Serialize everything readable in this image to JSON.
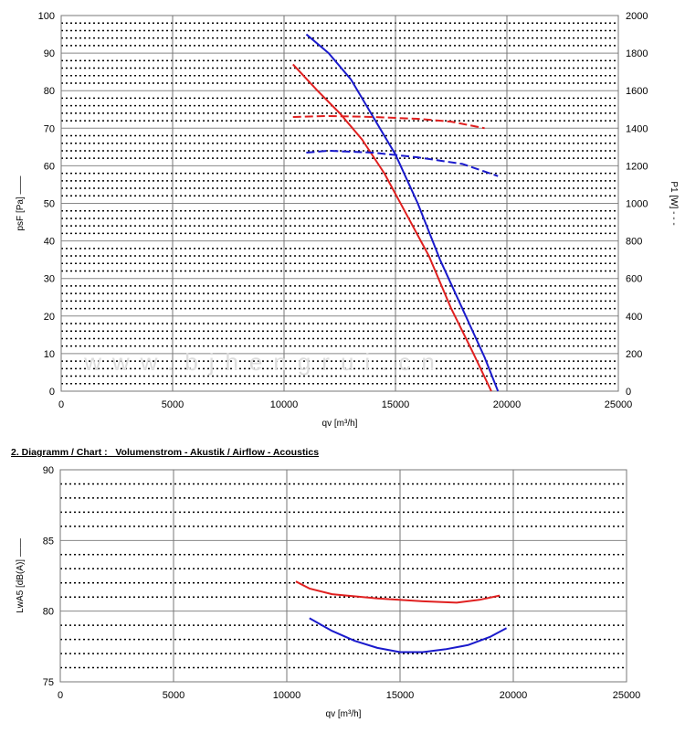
{
  "watermark": "www.bjhengrui.cn",
  "chart_data": [
    {
      "type": "line",
      "xlabel": "qv [m³/h]",
      "ylabel": "psF [Pa] ——",
      "y2label": "P1 [W] - - -",
      "xlim": [
        0,
        25000
      ],
      "ylim": [
        0,
        100
      ],
      "y2lim": [
        0,
        2000
      ],
      "xticks": [
        "0",
        "5000",
        "10000",
        "15000",
        "20000",
        "25000"
      ],
      "yticks": [
        "0",
        "10",
        "20",
        "30",
        "40",
        "50",
        "60",
        "70",
        "80",
        "90",
        "100"
      ],
      "y2ticks": [
        "0",
        "200",
        "400",
        "600",
        "800",
        "1000",
        "1200",
        "1400",
        "1600",
        "1800",
        "2000"
      ],
      "grid": true,
      "series": [
        {
          "axis": "left",
          "style": "solid",
          "color": "#1a1acc",
          "x": [
            11000,
            12000,
            13000,
            14000,
            15000,
            16000,
            17000,
            18000,
            19000,
            19600
          ],
          "y": [
            95,
            90,
            83,
            73,
            63,
            50,
            35,
            22,
            9,
            0
          ]
        },
        {
          "axis": "left",
          "style": "solid",
          "color": "#e02020",
          "x": [
            10400,
            11500,
            12500,
            13500,
            14500,
            15500,
            16500,
            17500,
            18500,
            19300
          ],
          "y": [
            87,
            80,
            74,
            67,
            58,
            47,
            36,
            22,
            10,
            0
          ]
        },
        {
          "axis": "right",
          "style": "dashed",
          "color": "#e02020",
          "x": [
            10400,
            12000,
            14000,
            16000,
            17500,
            19000
          ],
          "y": [
            1460,
            1465,
            1460,
            1450,
            1435,
            1400
          ]
        },
        {
          "axis": "right",
          "style": "dashed",
          "color": "#1a1acc",
          "x": [
            11000,
            12000,
            14000,
            16000,
            18000,
            19600
          ],
          "y": [
            1270,
            1280,
            1270,
            1245,
            1210,
            1145
          ]
        }
      ]
    },
    {
      "type": "line",
      "title": "2. Diagramm / Chart :   Volumenstrom - Akustik / Airflow - Acoustics",
      "xlabel": "qv [m³/h]",
      "ylabel": "LwA5 [dB(A)] ——",
      "xlim": [
        0,
        25000
      ],
      "ylim": [
        75,
        90
      ],
      "xticks": [
        "0",
        "5000",
        "10000",
        "15000",
        "20000",
        "25000"
      ],
      "yticks": [
        "75",
        "80",
        "85",
        "90"
      ],
      "grid": true,
      "series": [
        {
          "style": "solid",
          "color": "#e02020",
          "x": [
            10400,
            11000,
            12000,
            14000,
            16000,
            17500,
            18500,
            19400
          ],
          "y": [
            82.1,
            81.6,
            81.2,
            80.9,
            80.7,
            80.6,
            80.8,
            81.1
          ]
        },
        {
          "style": "solid",
          "color": "#1a1acc",
          "x": [
            11000,
            12000,
            13000,
            14000,
            15000,
            16000,
            17000,
            18000,
            19000,
            19700
          ],
          "y": [
            79.5,
            78.6,
            77.9,
            77.4,
            77.1,
            77.1,
            77.3,
            77.6,
            78.2,
            78.8
          ]
        }
      ]
    }
  ]
}
